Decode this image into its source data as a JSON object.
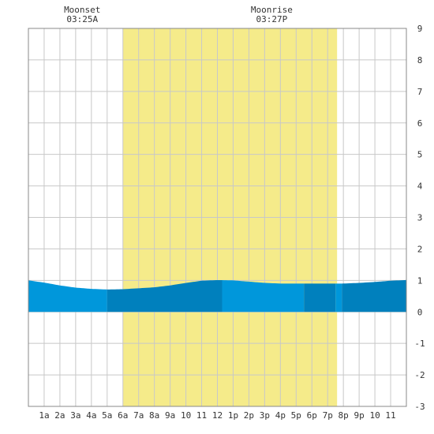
{
  "chart_data": {
    "type": "area",
    "title": "",
    "xlabel": "",
    "ylabel": "",
    "xlim": [
      0,
      24
    ],
    "ylim": [
      -3,
      9
    ],
    "y_ticks": [
      -3,
      -2,
      -1,
      0,
      1,
      2,
      3,
      4,
      5,
      6,
      7,
      8,
      9
    ],
    "x_tick_labels": [
      "1a",
      "2a",
      "3a",
      "4a",
      "5a",
      "6a",
      "7a",
      "8a",
      "9a",
      "10",
      "11",
      "12",
      "1p",
      "2p",
      "3p",
      "4p",
      "5p",
      "6p",
      "7p",
      "8p",
      "9p",
      "10",
      "11"
    ],
    "grid": true,
    "daylight": {
      "start_hour": 6.0,
      "end_hour": 19.6,
      "color": "#f5eb8a"
    },
    "moon_events": [
      {
        "label": "Moonset",
        "time": "03:25A",
        "hour": 3.42
      },
      {
        "label": "Moonrise",
        "time": "03:27P",
        "hour": 15.45
      }
    ],
    "tide_colors": {
      "light": "#0097db",
      "dark": "#0080bd"
    },
    "tide": {
      "x": [
        0,
        1,
        2,
        3,
        4,
        5,
        6,
        7,
        8,
        9,
        10,
        11,
        12,
        13,
        14,
        15,
        16,
        17,
        18,
        19,
        20,
        21,
        22,
        23,
        24
      ],
      "y": [
        1.0,
        0.93,
        0.84,
        0.77,
        0.73,
        0.71,
        0.72,
        0.75,
        0.78,
        0.84,
        0.92,
        0.99,
        1.01,
        1.0,
        0.96,
        0.92,
        0.9,
        0.9,
        0.9,
        0.9,
        0.9,
        0.92,
        0.95,
        0.99,
        1.01
      ]
    },
    "tide_bands": [
      {
        "start_hour": 0,
        "end_hour": 5.0,
        "shade": "light"
      },
      {
        "start_hour": 5.0,
        "end_hour": 12.3,
        "shade": "dark"
      },
      {
        "start_hour": 12.3,
        "end_hour": 17.5,
        "shade": "light"
      },
      {
        "start_hour": 17.5,
        "end_hour": 19.5,
        "shade": "dark"
      },
      {
        "start_hour": 19.5,
        "end_hour": 19.9,
        "shade": "light"
      },
      {
        "start_hour": 19.9,
        "end_hour": 24,
        "shade": "dark"
      }
    ]
  }
}
